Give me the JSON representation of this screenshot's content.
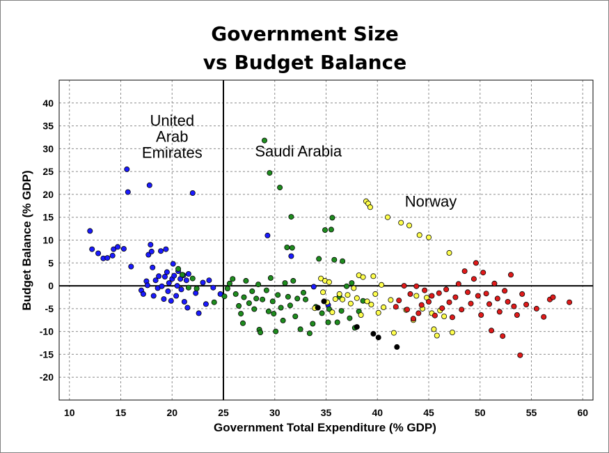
{
  "chart_data": {
    "type": "scatter",
    "title": "Government Size vs Budget Balance",
    "title_lines": [
      "Government Size",
      "vs Budget Balance"
    ],
    "xlabel": "Government Total Expenditure (% GDP)",
    "ylabel": "Budget Balance (% GDP)",
    "xlim": [
      9,
      61
    ],
    "ylim": [
      -25,
      45
    ],
    "x_ticks": [
      "10",
      "15",
      "20",
      "25",
      "30",
      "35",
      "40",
      "45",
      "50",
      "55",
      "60"
    ],
    "y_ticks": [
      "40",
      "35",
      "30",
      "25",
      "20",
      "15",
      "10",
      "5",
      "0",
      "-5",
      "-10",
      "-15",
      "-20"
    ],
    "grid": true,
    "reference_lines": {
      "x": 25,
      "y": 0
    },
    "annotations": [
      {
        "lines": [
          "United",
          "Arab",
          "Emirates"
        ],
        "x": 20,
        "y": 35
      },
      {
        "lines": [
          "Saudi Arabia"
        ],
        "x": 32.3,
        "y": 28.3
      },
      {
        "lines": [
          "Norway"
        ],
        "x": 45.2,
        "y": 17.3
      }
    ],
    "series": [
      {
        "color": "#1a1aff",
        "points": [
          [
            12.0,
            12.0
          ],
          [
            12.2,
            8.0
          ],
          [
            12.8,
            7.1
          ],
          [
            13.3,
            6.0
          ],
          [
            13.7,
            6.1
          ],
          [
            14.2,
            6.6
          ],
          [
            14.3,
            8.0
          ],
          [
            14.7,
            8.5
          ],
          [
            15.3,
            8.1
          ],
          [
            15.6,
            25.5
          ],
          [
            15.7,
            20.5
          ],
          [
            16.0,
            4.2
          ],
          [
            17.0,
            -1.0
          ],
          [
            17.2,
            -1.8
          ],
          [
            17.5,
            1.0
          ],
          [
            17.6,
            0.1
          ],
          [
            17.7,
            6.8
          ],
          [
            17.8,
            22.0
          ],
          [
            17.9,
            9.0
          ],
          [
            18.0,
            7.5
          ],
          [
            18.1,
            4.0
          ],
          [
            18.2,
            -2.2
          ],
          [
            18.4,
            1.2
          ],
          [
            18.6,
            -0.5
          ],
          [
            18.7,
            2.1
          ],
          [
            18.9,
            7.6
          ],
          [
            19.0,
            -0.1
          ],
          [
            19.2,
            -2.9
          ],
          [
            19.3,
            2.0
          ],
          [
            19.4,
            8.0
          ],
          [
            19.5,
            3.0
          ],
          [
            19.6,
            -1.2
          ],
          [
            19.7,
            0.6
          ],
          [
            19.9,
            -3.3
          ],
          [
            20.0,
            1.5
          ],
          [
            20.1,
            4.8
          ],
          [
            20.2,
            2.2
          ],
          [
            20.4,
            -2.2
          ],
          [
            20.5,
            0.0
          ],
          [
            20.6,
            3.2
          ],
          [
            20.8,
            1.5
          ],
          [
            20.9,
            -0.8
          ],
          [
            21.1,
            2.3
          ],
          [
            21.2,
            -3.5
          ],
          [
            21.4,
            1.2
          ],
          [
            21.5,
            -4.8
          ],
          [
            21.6,
            2.6
          ],
          [
            22.0,
            20.3
          ],
          [
            22.3,
            -1.6
          ],
          [
            22.6,
            -6.0
          ],
          [
            23.0,
            0.7
          ],
          [
            23.3,
            -4.0
          ],
          [
            23.6,
            1.2
          ],
          [
            24.0,
            -0.4
          ],
          [
            24.7,
            -1.8
          ],
          [
            29.3,
            11.0
          ],
          [
            31.6,
            6.5
          ],
          [
            33.8,
            -0.2
          ],
          [
            35.2,
            -4.2
          ]
        ]
      },
      {
        "color": "#1e8c1e",
        "points": [
          [
            20.6,
            3.7
          ],
          [
            21.0,
            2.4
          ],
          [
            21.6,
            -0.4
          ],
          [
            22.0,
            1.6
          ],
          [
            22.4,
            -0.6
          ],
          [
            24.1,
            -3.6
          ],
          [
            25.1,
            -2.3
          ],
          [
            25.4,
            -0.6
          ],
          [
            25.6,
            0.5
          ],
          [
            25.9,
            1.5
          ],
          [
            26.2,
            -1.8
          ],
          [
            26.5,
            -4.4
          ],
          [
            26.7,
            -6.1
          ],
          [
            26.9,
            -8.2
          ],
          [
            27.0,
            -2.5
          ],
          [
            27.2,
            1.1
          ],
          [
            27.5,
            -3.8
          ],
          [
            27.8,
            -1.2
          ],
          [
            28.0,
            -5.1
          ],
          [
            28.2,
            -2.8
          ],
          [
            28.4,
            0.3
          ],
          [
            28.5,
            -9.6
          ],
          [
            28.6,
            -10.2
          ],
          [
            28.8,
            -3.0
          ],
          [
            29.0,
            31.8
          ],
          [
            29.2,
            -1.0
          ],
          [
            29.4,
            -5.6
          ],
          [
            29.5,
            24.7
          ],
          [
            29.6,
            1.7
          ],
          [
            29.8,
            -3.4
          ],
          [
            29.9,
            -6.1
          ],
          [
            30.1,
            -10.0
          ],
          [
            30.3,
            -2.0
          ],
          [
            30.5,
            21.5
          ],
          [
            30.6,
            -4.8
          ],
          [
            30.8,
            -7.6
          ],
          [
            31.0,
            0.6
          ],
          [
            31.2,
            8.4
          ],
          [
            31.3,
            -2.4
          ],
          [
            31.5,
            -4.3
          ],
          [
            31.6,
            15.1
          ],
          [
            31.7,
            8.3
          ],
          [
            31.8,
            1.1
          ],
          [
            32.0,
            -6.7
          ],
          [
            32.2,
            -2.8
          ],
          [
            32.5,
            -9.5
          ],
          [
            32.8,
            -1.5
          ],
          [
            33.0,
            -3.0
          ],
          [
            33.4,
            -10.4
          ],
          [
            33.7,
            -8.3
          ],
          [
            34.0,
            -4.6
          ],
          [
            34.3,
            5.9
          ],
          [
            34.6,
            -6.0
          ],
          [
            34.9,
            12.2
          ],
          [
            35.2,
            -8.0
          ],
          [
            35.3,
            -5.1
          ],
          [
            35.5,
            12.3
          ],
          [
            35.6,
            14.9
          ],
          [
            35.8,
            5.7
          ],
          [
            36.1,
            -8.0
          ],
          [
            36.3,
            -2.4
          ],
          [
            36.5,
            -5.5
          ],
          [
            36.6,
            5.4
          ],
          [
            37.0,
            -0.1
          ],
          [
            37.3,
            -7.1
          ],
          [
            37.5,
            0.6
          ],
          [
            37.8,
            -9.2
          ],
          [
            38.2,
            -5.6
          ],
          [
            38.6,
            -3.3
          ]
        ]
      },
      {
        "color": "#ffff4d",
        "points": [
          [
            33.9,
            -4.9
          ],
          [
            34.5,
            1.6
          ],
          [
            34.7,
            -1.4
          ],
          [
            34.9,
            1.1
          ],
          [
            35.1,
            -3.6
          ],
          [
            35.3,
            0.8
          ],
          [
            35.6,
            -5.8
          ],
          [
            35.9,
            -2.9
          ],
          [
            36.3,
            -1.8
          ],
          [
            36.6,
            -3.0
          ],
          [
            37.1,
            -2.0
          ],
          [
            37.4,
            -3.9
          ],
          [
            37.7,
            -0.5
          ],
          [
            38.0,
            -2.7
          ],
          [
            38.2,
            2.3
          ],
          [
            38.4,
            -6.4
          ],
          [
            38.6,
            1.9
          ],
          [
            38.9,
            18.5
          ],
          [
            39.1,
            18.0
          ],
          [
            39.3,
            17.2
          ],
          [
            39.0,
            -3.4
          ],
          [
            39.4,
            -4.1
          ],
          [
            39.6,
            2.1
          ],
          [
            39.8,
            -1.8
          ],
          [
            40.1,
            -5.9
          ],
          [
            40.4,
            0.2
          ],
          [
            40.6,
            -4.7
          ],
          [
            41.0,
            15.0
          ],
          [
            41.3,
            -3.1
          ],
          [
            41.6,
            -10.3
          ],
          [
            42.3,
            13.8
          ],
          [
            42.8,
            -5.3
          ],
          [
            43.1,
            13.2
          ],
          [
            43.5,
            -7.5
          ],
          [
            43.8,
            -2.2
          ],
          [
            44.1,
            11.1
          ],
          [
            44.4,
            -5.0
          ],
          [
            44.8,
            -2.6
          ],
          [
            45.0,
            10.6
          ],
          [
            45.3,
            -6.0
          ],
          [
            45.5,
            -9.5
          ],
          [
            45.8,
            -10.9
          ],
          [
            46.1,
            -5.4
          ],
          [
            46.5,
            -6.7
          ],
          [
            47.0,
            7.2
          ],
          [
            47.3,
            -10.2
          ]
        ]
      },
      {
        "color": "#e01a1a",
        "points": [
          [
            41.8,
            -4.6
          ],
          [
            42.1,
            -3.2
          ],
          [
            42.6,
            0.0
          ],
          [
            42.9,
            -5.2
          ],
          [
            43.2,
            -1.8
          ],
          [
            43.5,
            -7.2
          ],
          [
            43.8,
            -0.1
          ],
          [
            44.0,
            -6.0
          ],
          [
            44.3,
            -4.2
          ],
          [
            44.6,
            -1.0
          ],
          [
            45.0,
            -3.5
          ],
          [
            45.3,
            -2.2
          ],
          [
            45.6,
            -6.5
          ],
          [
            46.0,
            -1.6
          ],
          [
            46.3,
            -4.9
          ],
          [
            46.7,
            -0.8
          ],
          [
            47.0,
            -3.6
          ],
          [
            47.3,
            -6.9
          ],
          [
            47.6,
            -2.5
          ],
          [
            47.9,
            0.4
          ],
          [
            48.2,
            -5.2
          ],
          [
            48.5,
            3.2
          ],
          [
            48.8,
            -1.4
          ],
          [
            49.1,
            -3.9
          ],
          [
            49.4,
            1.5
          ],
          [
            49.6,
            5.0
          ],
          [
            49.8,
            -2.2
          ],
          [
            50.1,
            -6.4
          ],
          [
            50.3,
            2.9
          ],
          [
            50.6,
            -1.7
          ],
          [
            50.9,
            -4.0
          ],
          [
            51.1,
            -9.8
          ],
          [
            51.4,
            0.5
          ],
          [
            51.7,
            -2.8
          ],
          [
            51.9,
            -5.7
          ],
          [
            52.2,
            -11.0
          ],
          [
            52.4,
            -1.1
          ],
          [
            52.7,
            -3.5
          ],
          [
            53.0,
            2.4
          ],
          [
            53.3,
            -4.5
          ],
          [
            53.6,
            -6.4
          ],
          [
            53.9,
            -15.2
          ],
          [
            54.1,
            -1.8
          ],
          [
            54.5,
            -4.1
          ],
          [
            55.5,
            -5.0
          ],
          [
            56.2,
            -6.8
          ],
          [
            56.8,
            -3.0
          ],
          [
            57.1,
            -2.5
          ],
          [
            58.7,
            -3.6
          ]
        ]
      },
      {
        "color": "#000000",
        "points": [
          [
            34.2,
            -4.8
          ],
          [
            34.8,
            -3.4
          ],
          [
            38.0,
            -9.0
          ],
          [
            39.6,
            -10.5
          ],
          [
            40.1,
            -11.3
          ],
          [
            41.9,
            -13.4
          ]
        ]
      }
    ]
  }
}
